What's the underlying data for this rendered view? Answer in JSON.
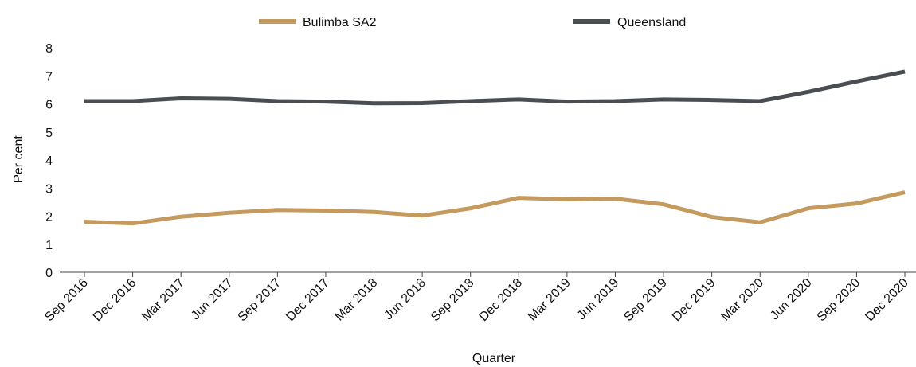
{
  "chart_data": {
    "type": "line",
    "x_label": "Quarter",
    "y_label": "Per cent",
    "categories": [
      "Sep 2016",
      "Dec 2016",
      "Mar 2017",
      "Jun 2017",
      "Sep 2017",
      "Dec 2017",
      "Mar 2018",
      "Jun 2018",
      "Sep 2018",
      "Dec 2018",
      "Mar 2019",
      "Jun 2019",
      "Sep 2019",
      "Dec 2019",
      "Mar 2020",
      "Jun 2020",
      "Sep 2020",
      "Dec 2020"
    ],
    "series": [
      {
        "name": "Bulimba SA2",
        "color": "#c49a5e",
        "values": [
          1.8,
          1.74,
          1.98,
          2.12,
          2.22,
          2.2,
          2.15,
          2.02,
          2.28,
          2.65,
          2.6,
          2.62,
          2.42,
          1.97,
          1.78,
          2.28,
          2.45,
          2.85
        ]
      },
      {
        "name": "Queensland",
        "color": "#4a4d52",
        "values": [
          6.1,
          6.1,
          6.2,
          6.18,
          6.1,
          6.08,
          6.02,
          6.03,
          6.1,
          6.16,
          6.08,
          6.1,
          6.16,
          6.14,
          6.1,
          6.43,
          6.8,
          7.15
        ]
      }
    ],
    "ylim": [
      0,
      8
    ],
    "yticks": [
      0,
      1,
      2,
      3,
      4,
      5,
      6,
      7,
      8
    ],
    "grid": false,
    "legend": "top"
  }
}
